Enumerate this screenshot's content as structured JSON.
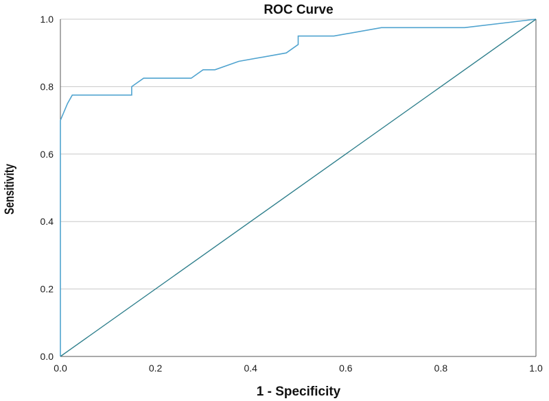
{
  "chart_data": {
    "type": "line",
    "title": "ROC Curve",
    "xlabel": "1 - Specificity",
    "ylabel": "Sensitivity",
    "xlim": [
      0,
      1
    ],
    "ylim": [
      0,
      1
    ],
    "x_ticks": [
      "0.0",
      "0.2",
      "0.4",
      "0.6",
      "0.8",
      "1.0"
    ],
    "y_ticks": [
      "0.0",
      "0.2",
      "0.4",
      "0.6",
      "0.8",
      "1.0"
    ],
    "grid": "horizontal",
    "series": [
      {
        "color": "#4fa3cf",
        "points": [
          [
            0.0,
            0.0
          ],
          [
            0.0,
            0.7
          ],
          [
            0.0,
            0.7
          ],
          [
            0.015,
            0.75
          ],
          [
            0.025,
            0.775
          ],
          [
            0.15,
            0.775
          ],
          [
            0.15,
            0.8
          ],
          [
            0.175,
            0.825
          ],
          [
            0.275,
            0.825
          ],
          [
            0.3,
            0.85
          ],
          [
            0.325,
            0.85
          ],
          [
            0.375,
            0.875
          ],
          [
            0.475,
            0.9
          ],
          [
            0.5,
            0.925
          ],
          [
            0.5,
            0.95
          ],
          [
            0.575,
            0.95
          ],
          [
            0.675,
            0.975
          ],
          [
            0.85,
            0.975
          ],
          [
            1.0,
            1.0
          ]
        ]
      },
      {
        "color": "#2e7f8c",
        "points": [
          [
            0.0,
            0.0
          ],
          [
            1.0,
            1.0
          ]
        ]
      }
    ]
  }
}
